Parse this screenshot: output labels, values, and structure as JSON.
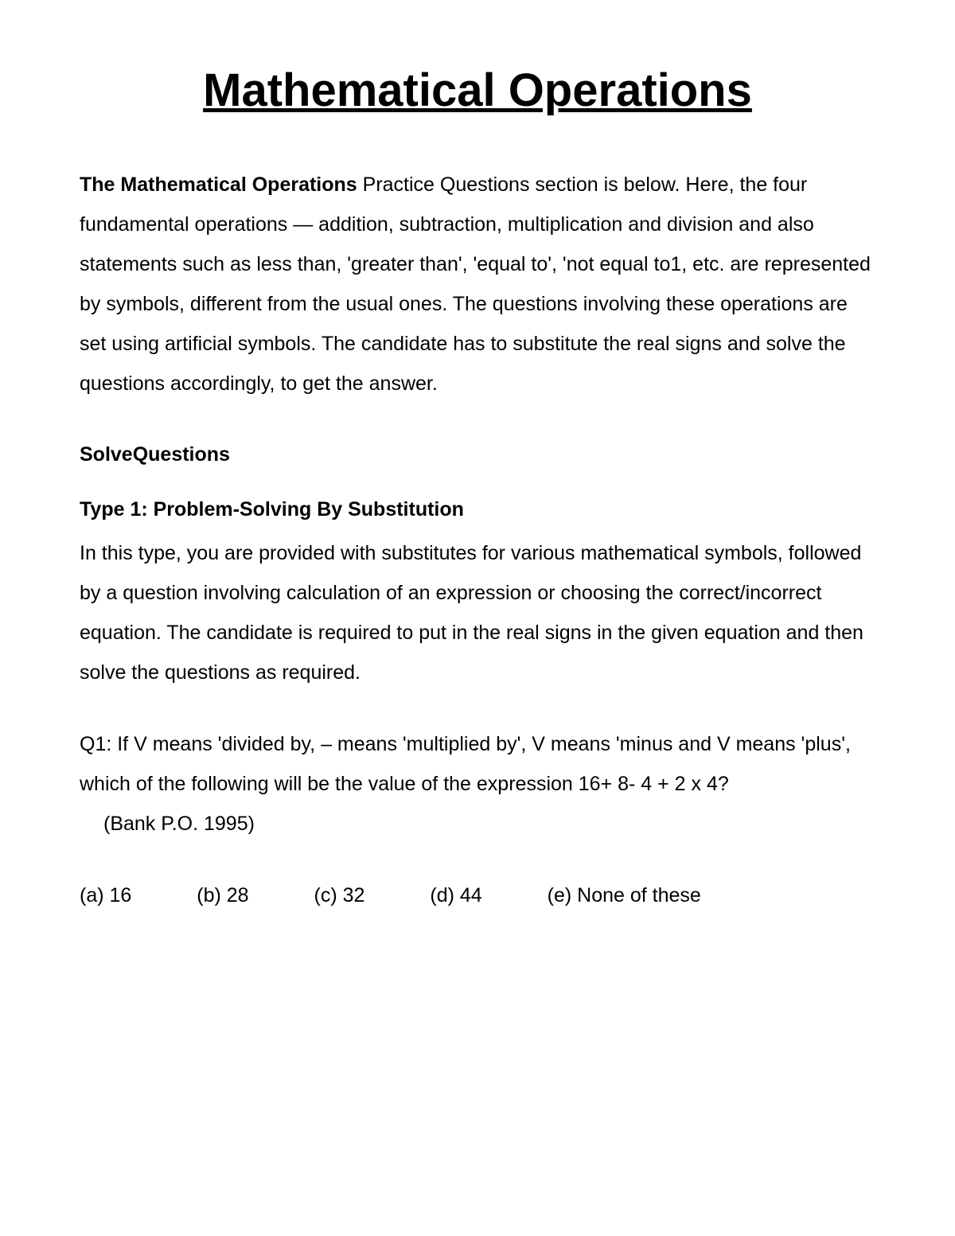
{
  "title": "Mathematical Operations",
  "intro": {
    "bold_lead": "The Mathematical Operations",
    "rest": " Practice Questions section is below. Here, the four fundamental operations — addition, subtraction, multiplication and division and also statements such as less than, 'greater than', 'equal to', 'not equal to1, etc. are represented by symbols, different from the usual ones. The questions involving these operations are set using artificial symbols. The candidate has to substitute the real signs and solve the questions accordingly, to get the answer."
  },
  "section_heading": "SolveQuestions",
  "type1": {
    "heading": "Type 1: Problem-Solving By Substitution",
    "description": "In this type, you are provided with substitutes for various mathematical symbols, followed by a question involving calculation of an expression or choosing the correct/incorrect equation. The candidate is required to put in the real signs in the given equation and then solve the questions as required."
  },
  "question1": {
    "text": "Q1: If V means 'divided by, – means 'multiplied by', V means 'minus and V means 'plus', which of the following will be the value of the expression 16+ 8- 4 + 2 x 4?",
    "source": "(Bank P.O. 1995)",
    "options": {
      "a": "(a) 16",
      "b": "(b) 28",
      "c": "(c) 32",
      "d": "(d) 44",
      "e": "(e) None of these"
    }
  },
  "styling": {
    "background_color": "#ffffff",
    "text_color": "#000000",
    "title_fontsize": 58,
    "body_fontsize": 25,
    "line_height": 2,
    "font_family": "Arial"
  }
}
